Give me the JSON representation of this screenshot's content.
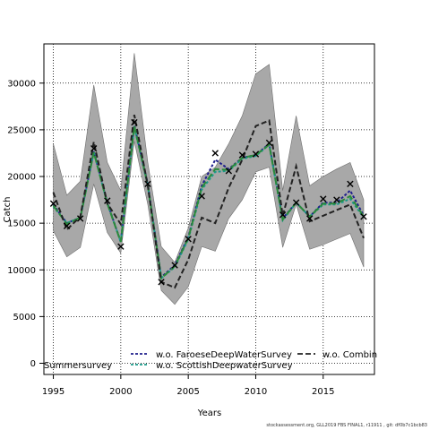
{
  "chart_data": {
    "type": "line",
    "xlabel": "Years",
    "ylabel": "Catch",
    "xlim": [
      1994.3,
      2018.8
    ],
    "ylim": [
      -1200,
      34200
    ],
    "xticks": [
      1995,
      2000,
      2005,
      2010,
      2015
    ],
    "yticks": [
      0,
      5000,
      10000,
      15000,
      20000,
      25000,
      30000
    ],
    "grid": "dotted",
    "years": [
      1995,
      1996,
      1997,
      1998,
      1999,
      2000,
      2001,
      2002,
      2003,
      2004,
      2005,
      2006,
      2007,
      2008,
      2009,
      2010,
      2011,
      2012,
      2013,
      2014,
      2015,
      2016,
      2017,
      2018
    ],
    "ci_band": {
      "upper": [
        23500,
        18000,
        19500,
        29800,
        21500,
        18500,
        33200,
        21500,
        12500,
        10800,
        14500,
        20000,
        21000,
        23500,
        26500,
        31000,
        32000,
        18500,
        26500,
        19000,
        20000,
        20800,
        21500,
        17500
      ],
      "lower": [
        14200,
        11400,
        12400,
        19200,
        14000,
        11800,
        23800,
        17000,
        7800,
        6300,
        8200,
        12500,
        12000,
        15500,
        17500,
        20500,
        21000,
        12400,
        17000,
        12200,
        12700,
        13300,
        13900,
        10300
      ]
    },
    "observations": [
      17100,
      14700,
      15500,
      23000,
      17400,
      12500,
      25800,
      19200,
      8700,
      10500,
      13300,
      17900,
      22500,
      20600,
      22300,
      22400,
      23600,
      15900,
      17200,
      15500,
      17600,
      17500,
      19200,
      15700
    ],
    "series": [
      {
        "name": "w.o. FaroeseDeepWaterSurvey",
        "color": "#1f1f8c",
        "dash": "3,2",
        "values": [
          17000,
          15000,
          15600,
          22700,
          17200,
          13000,
          25500,
          19200,
          9200,
          10500,
          13500,
          19000,
          21800,
          20800,
          22000,
          22300,
          23500,
          15500,
          17200,
          15700,
          17200,
          17200,
          18500,
          15800
        ]
      },
      {
        "name": "w.o. ScottishDeepwaterSurvey",
        "color": "#1b9a8a",
        "dash": "3,2",
        "values": [
          16800,
          15000,
          15600,
          22600,
          17100,
          13000,
          25300,
          19000,
          9100,
          10300,
          13300,
          18600,
          20500,
          20600,
          21900,
          22200,
          23400,
          15300,
          17200,
          15700,
          17000,
          17000,
          17600,
          15600
        ]
      },
      {
        "name": "w.o. CombinedSummersurvey",
        "color": "#2b8a3a",
        "dash": "8,3",
        "values": [
          16900,
          14900,
          15600,
          22600,
          17100,
          13000,
          25400,
          19100,
          9100,
          10400,
          13400,
          18800,
          20800,
          20700,
          22000,
          22300,
          23400,
          15400,
          17200,
          15700,
          17100,
          17100,
          17900,
          15700
        ]
      },
      {
        "name": "",
        "color": "#222222",
        "dash": "6,3",
        "values": [
          18300,
          14300,
          15700,
          23700,
          17100,
          14900,
          26600,
          19000,
          8700,
          8100,
          11100,
          15600,
          15000,
          18800,
          21800,
          25400,
          26000,
          15800,
          21100,
          15200,
          15800,
          16400,
          17000,
          13400
        ]
      }
    ],
    "legend": {
      "placement": "bottom",
      "labels": [
        "w.o. FaroeseDeepWaterSurvey",
        "w.o. Combin",
        "w.o. ScottishDeepwaterSurvey",
        "Summersurvey"
      ]
    }
  },
  "footer_text": "stockassessment.org, GLL2019 FBS FINAL1, r11911 , git: df0b7c1bcb83",
  "colors": {
    "band": "#a8a8a8",
    "observation": "#000000"
  }
}
